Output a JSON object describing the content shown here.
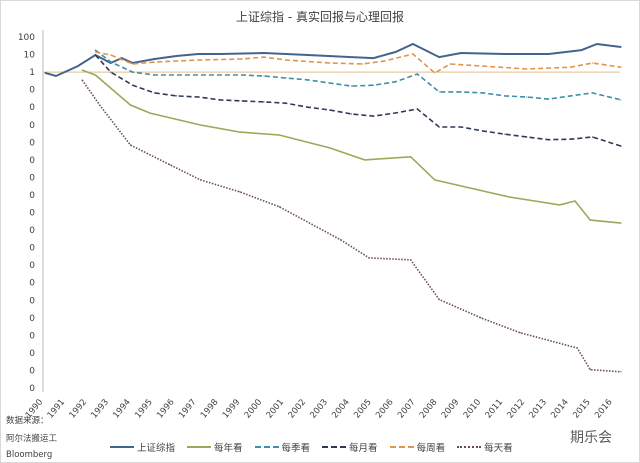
{
  "chart_data": {
    "type": "line",
    "title": "上证综指 - 真实回报与心理回报",
    "y_scale": "log",
    "ylim": [
      1e-18,
      100
    ],
    "y_tick_labels": [
      "100",
      "10",
      "1",
      "0",
      "0",
      "0",
      "0",
      "0",
      "0",
      "0",
      "0",
      "0",
      "0",
      "0",
      "0",
      "0",
      "0",
      "0",
      "0",
      "0",
      "0"
    ],
    "x_tick_labels": [
      "1990",
      "1991",
      "1992",
      "1993",
      "1994",
      "1995",
      "1996",
      "1997",
      "1998",
      "1999",
      "2000",
      "2001",
      "2002",
      "2003",
      "2004",
      "2005",
      "2006",
      "2007",
      "2008",
      "2009",
      "2010",
      "2011",
      "2012",
      "2013",
      "2014",
      "2015",
      "2016"
    ],
    "xlim": [
      1990,
      2016.6
    ],
    "reference_line": 1,
    "grid": false,
    "legend_position": "bottom",
    "series": [
      {
        "name": "上证综指",
        "color": "#44648e",
        "style": "solid",
        "points": [
          [
            1990,
            0.9
          ],
          [
            1990.5,
            0.6
          ],
          [
            1991.5,
            2.2
          ],
          [
            1992.3,
            9.4
          ],
          [
            1993,
            3.3
          ],
          [
            1993.5,
            6.3
          ],
          [
            1994,
            3.3
          ],
          [
            1995,
            5.6
          ],
          [
            1996,
            8.3
          ],
          [
            1997,
            10.7
          ],
          [
            1998,
            10.7
          ],
          [
            2000,
            12.3
          ],
          [
            2002,
            9.4
          ],
          [
            2004,
            7.2
          ],
          [
            2005,
            6.3
          ],
          [
            2006,
            14
          ],
          [
            2006.8,
            40
          ],
          [
            2008,
            7.2
          ],
          [
            2009,
            12.3
          ],
          [
            2011,
            10.7
          ],
          [
            2013,
            10.7
          ],
          [
            2014.5,
            18
          ],
          [
            2015.2,
            40
          ],
          [
            2016.3,
            27
          ]
        ]
      },
      {
        "name": "每年看",
        "color": "#9aaa5a",
        "style": "solid",
        "points": [
          [
            1991.7,
            1.3
          ],
          [
            1992.3,
            0.68
          ],
          [
            1993.9,
            0.0134
          ],
          [
            1994.8,
            0.0046
          ],
          [
            1997.1,
            0.00097
          ],
          [
            1998.9,
            0.00038
          ],
          [
            2000.7,
            0.00026
          ],
          [
            2003,
            4.8e-05
          ],
          [
            2004.6,
            9.9e-06
          ],
          [
            2006.7,
            1.5e-05
          ],
          [
            2007.8,
            7.2e-07
          ],
          [
            2009.4,
            2.5e-07
          ],
          [
            2011.2,
            7.6e-08
          ],
          [
            2013.5,
            2.7e-08
          ],
          [
            2014.2,
            4.5e-08
          ],
          [
            2014.9,
            3.7e-09
          ],
          [
            2016.3,
            2.5e-09
          ]
        ]
      },
      {
        "name": "每季看",
        "color": "#3f8fa6",
        "style": "dashed",
        "points": [
          [
            1992.3,
            18
          ],
          [
            1993,
            3.8
          ],
          [
            1994,
            1.0
          ],
          [
            1995,
            0.68
          ],
          [
            1999,
            0.68
          ],
          [
            2000,
            0.6
          ],
          [
            2001,
            0.46
          ],
          [
            2002,
            0.36
          ],
          [
            2003,
            0.24
          ],
          [
            2004,
            0.16
          ],
          [
            2005,
            0.18
          ],
          [
            2006,
            0.28
          ],
          [
            2007,
            0.78
          ],
          [
            2008,
            0.074
          ],
          [
            2009,
            0.074
          ],
          [
            2010,
            0.065
          ],
          [
            2011,
            0.044
          ],
          [
            2012,
            0.038
          ],
          [
            2013,
            0.029
          ],
          [
            2014,
            0.044
          ],
          [
            2015,
            0.065
          ],
          [
            2016.3,
            0.026
          ]
        ]
      },
      {
        "name": "每月看",
        "color": "#2e3a55",
        "style": "dashed",
        "points": [
          [
            1992.3,
            9.4
          ],
          [
            1993,
            1.0
          ],
          [
            1994,
            0.18
          ],
          [
            1995,
            0.065
          ],
          [
            1996,
            0.044
          ],
          [
            1997,
            0.038
          ],
          [
            1998,
            0.026
          ],
          [
            1999,
            0.023
          ],
          [
            2000,
            0.02
          ],
          [
            2001,
            0.017
          ],
          [
            2002,
            0.01
          ],
          [
            2003,
            0.0069
          ],
          [
            2004,
            0.0041
          ],
          [
            2005,
            0.0031
          ],
          [
            2006,
            0.0047
          ],
          [
            2007,
            0.0079
          ],
          [
            2008,
            0.00074
          ],
          [
            2009,
            0.00074
          ],
          [
            2010,
            0.00044
          ],
          [
            2011,
            0.00029
          ],
          [
            2012,
            0.0002
          ],
          [
            2013,
            0.00014
          ],
          [
            2014,
            0.00015
          ],
          [
            2015,
            0.0002
          ],
          [
            2016.3,
            6.1e-05
          ]
        ]
      },
      {
        "name": "每周看",
        "color": "#e0964a",
        "style": "dashed",
        "points": [
          [
            1992.3,
            14
          ],
          [
            1993,
            9.4
          ],
          [
            1994,
            2.9
          ],
          [
            1995,
            3.7
          ],
          [
            1997,
            4.9
          ],
          [
            1999,
            5.6
          ],
          [
            2000,
            7.2
          ],
          [
            2001,
            4.9
          ],
          [
            2003,
            3.3
          ],
          [
            2004.5,
            2.9
          ],
          [
            2005.5,
            4.3
          ],
          [
            2006.8,
            10.7
          ],
          [
            2007.8,
            0.9
          ],
          [
            2008.5,
            2.9
          ],
          [
            2010,
            2.2
          ],
          [
            2012,
            1.5
          ],
          [
            2014,
            1.9
          ],
          [
            2015,
            3.3
          ],
          [
            2016.3,
            1.9
          ]
        ]
      },
      {
        "name": "每天看",
        "color": "#6a4a62",
        "style": "dotted",
        "points": [
          [
            1991.7,
            0.35
          ],
          [
            1992.5,
            0.013
          ],
          [
            1993.9,
            7e-05
          ],
          [
            1995.7,
            5.3e-06
          ],
          [
            1997.1,
            7.2e-07
          ],
          [
            1998.9,
            1.5e-07
          ],
          [
            2000.7,
            2.1e-08
          ],
          [
            2003.5,
            2.8e-10
          ],
          [
            2004.8,
            2.6e-11
          ],
          [
            2006.7,
            2e-11
          ],
          [
            2008,
            1.1e-13
          ],
          [
            2009.9,
            1e-14
          ],
          [
            2011.7,
            1.4e-15
          ],
          [
            2014.3,
            1.9e-16
          ],
          [
            2014.9,
            1.1e-17
          ],
          [
            2016.3,
            8.4e-18
          ]
        ]
      }
    ]
  },
  "source": {
    "label": "数据来源：",
    "line1": "阿尔法搬运工",
    "line2": "Bloomberg"
  },
  "watermark": "期乐会"
}
